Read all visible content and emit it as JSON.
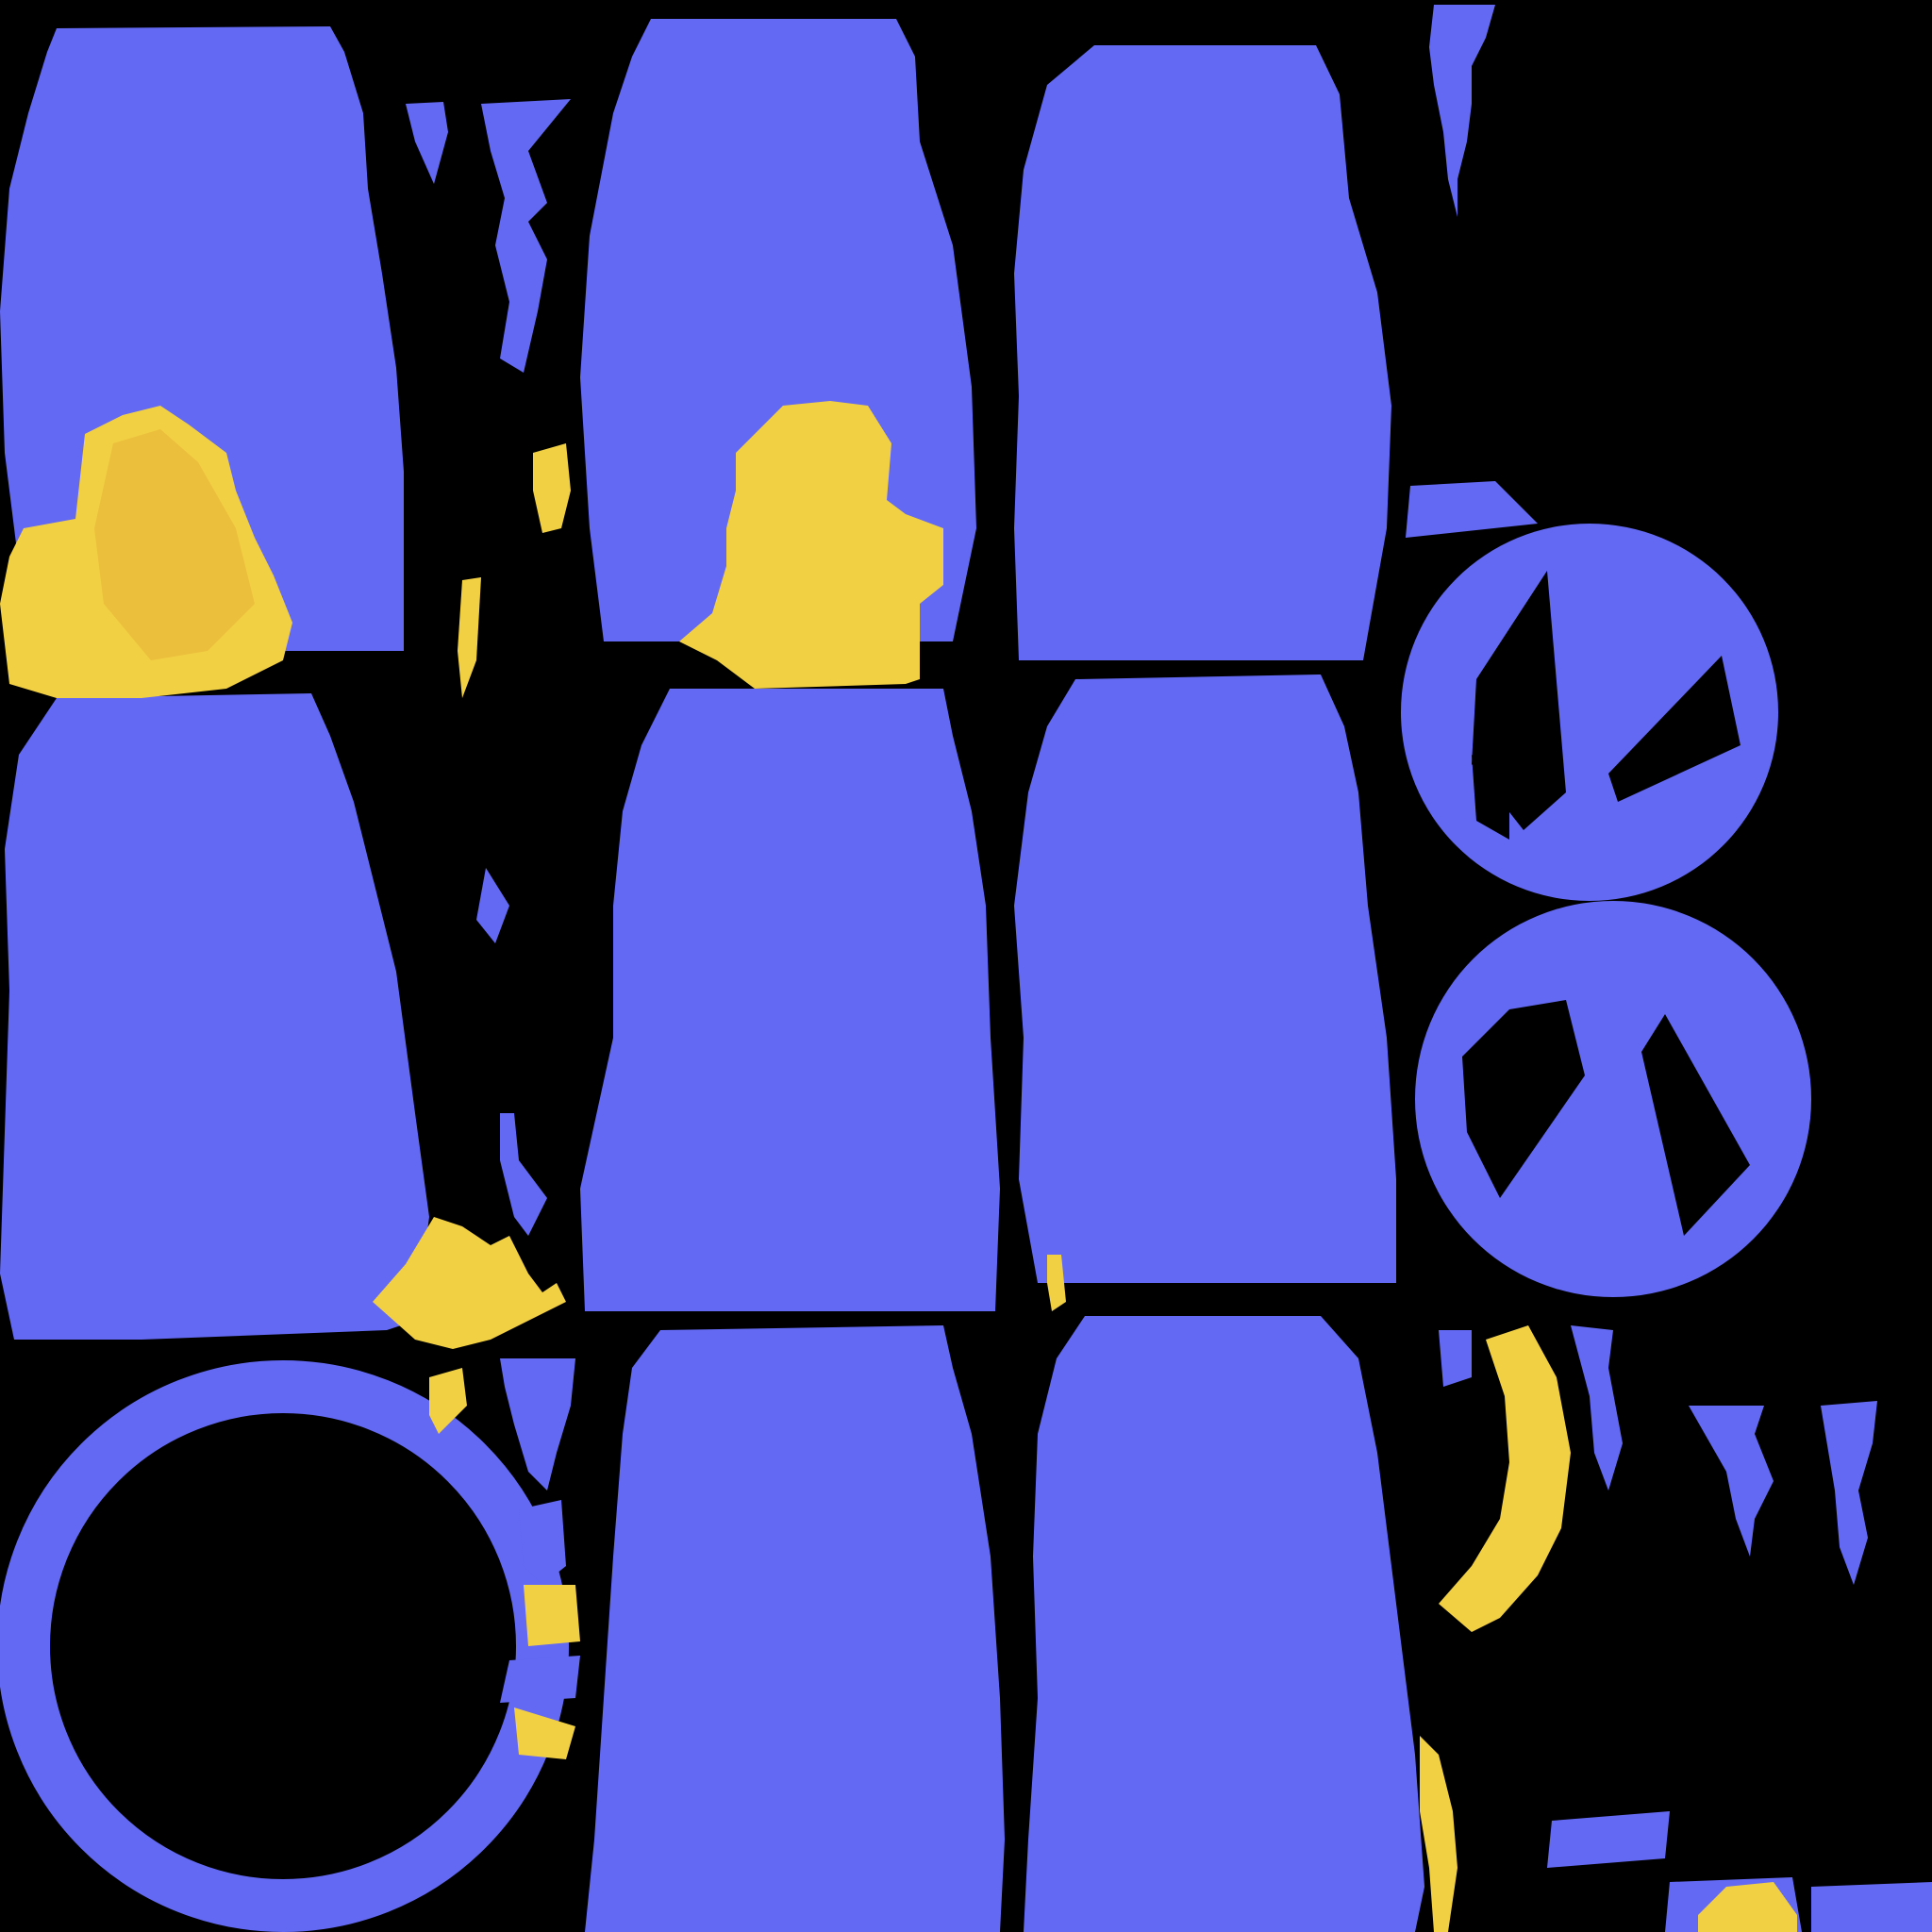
{
  "image": {
    "kind": "texture-atlas",
    "background_color": "#000000",
    "primary_color": "#6369F2",
    "accent_color": "#F2D044",
    "accent_shade": "#E8B838"
  },
  "panels": {
    "row_1": [
      "panel",
      "panel",
      "panel"
    ],
    "row_2": [
      "panel",
      "panel",
      "panel"
    ],
    "row_3": [
      "ring",
      "panel",
      "panel"
    ]
  },
  "disc_elements": [
    "upper-disc",
    "lower-disc"
  ],
  "yellow_patches": [
    "top-left-patch",
    "top-middle-patch",
    "middle-left-patch",
    "right-crescent",
    "bottom-right-patch"
  ]
}
